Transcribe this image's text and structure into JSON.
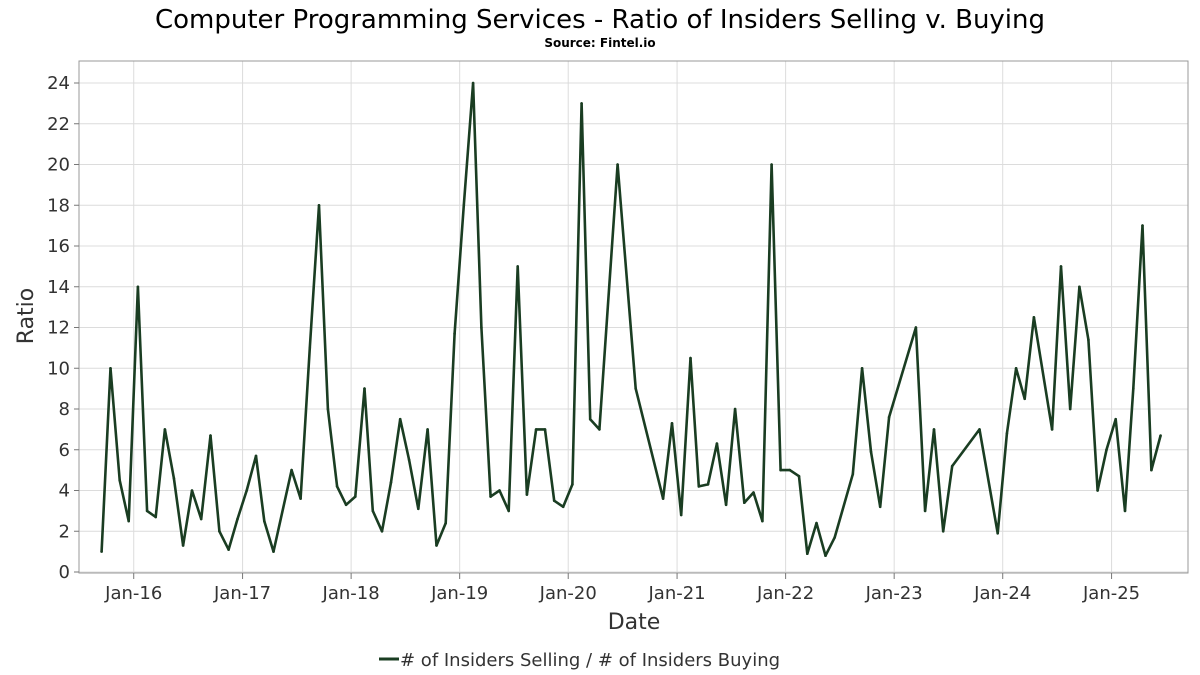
{
  "chart_data": {
    "type": "line",
    "title": "Computer Programming Services - Ratio of Insiders Selling v. Buying",
    "subtitle": "Source: Fintel.io",
    "xlabel": "Date",
    "ylabel": "Ratio",
    "xlim": [
      "2015-07-01",
      "2025-09-15"
    ],
    "ylim": [
      0,
      25
    ],
    "x_ticks": [
      "2016-01-01",
      "2017-01-01",
      "2018-01-01",
      "2019-01-01",
      "2020-01-01",
      "2021-01-01",
      "2022-01-01",
      "2023-01-01",
      "2024-01-01",
      "2025-01-01"
    ],
    "x_tick_labels": [
      "Jan-16",
      "Jan-17",
      "Jan-18",
      "Jan-19",
      "Jan-20",
      "Jan-21",
      "Jan-22",
      "Jan-23",
      "Jan-24",
      "Jan-25"
    ],
    "y_ticks": [
      0,
      2,
      4,
      6,
      8,
      10,
      12,
      14,
      16,
      18,
      20,
      22,
      24
    ],
    "grid": true,
    "legend_position": "bottom",
    "series": [
      {
        "name": "# of Insiders Selling / # of Insiders Buying",
        "color": "#1a3d22",
        "points": [
          [
            "2015-09-15",
            1.0
          ],
          [
            "2015-10-15",
            10.0
          ],
          [
            "2015-11-15",
            4.5
          ],
          [
            "2015-12-15",
            2.5
          ],
          [
            "2016-01-15",
            14.0
          ],
          [
            "2016-02-15",
            3.0
          ],
          [
            "2016-03-15",
            2.7
          ],
          [
            "2016-04-15",
            7.0
          ],
          [
            "2016-05-15",
            4.6
          ],
          [
            "2016-06-15",
            1.3
          ],
          [
            "2016-07-15",
            4.0
          ],
          [
            "2016-08-15",
            2.6
          ],
          [
            "2016-09-15",
            6.7
          ],
          [
            "2016-10-15",
            2.0
          ],
          [
            "2016-11-15",
            1.1
          ],
          [
            "2016-12-15",
            2.6
          ],
          [
            "2017-01-15",
            4.0
          ],
          [
            "2017-02-15",
            5.7
          ],
          [
            "2017-03-15",
            2.5
          ],
          [
            "2017-04-15",
            1.0
          ],
          [
            "2017-06-15",
            5.0
          ],
          [
            "2017-07-15",
            3.6
          ],
          [
            "2017-08-15",
            11.0
          ],
          [
            "2017-09-15",
            18.0
          ],
          [
            "2017-10-15",
            8.0
          ],
          [
            "2017-11-15",
            4.2
          ],
          [
            "2017-12-15",
            3.3
          ],
          [
            "2018-01-15",
            3.7
          ],
          [
            "2018-02-15",
            9.0
          ],
          [
            "2018-03-15",
            3.0
          ],
          [
            "2018-04-15",
            2.0
          ],
          [
            "2018-05-15",
            4.4
          ],
          [
            "2018-06-15",
            7.5
          ],
          [
            "2018-07-15",
            5.5
          ],
          [
            "2018-08-15",
            3.1
          ],
          [
            "2018-09-15",
            7.0
          ],
          [
            "2018-10-15",
            1.3
          ],
          [
            "2018-11-15",
            2.4
          ],
          [
            "2018-12-15",
            11.7
          ],
          [
            "2019-01-15",
            18.0
          ],
          [
            "2019-02-15",
            24.0
          ],
          [
            "2019-03-15",
            12.0
          ],
          [
            "2019-04-15",
            3.7
          ],
          [
            "2019-05-15",
            4.0
          ],
          [
            "2019-06-15",
            3.0
          ],
          [
            "2019-07-15",
            15.0
          ],
          [
            "2019-08-15",
            3.8
          ],
          [
            "2019-09-15",
            7.0
          ],
          [
            "2019-10-15",
            7.0
          ],
          [
            "2019-11-15",
            3.5
          ],
          [
            "2019-12-15",
            3.2
          ],
          [
            "2020-01-15",
            4.3
          ],
          [
            "2020-02-15",
            23.0
          ],
          [
            "2020-03-15",
            7.5
          ],
          [
            "2020-04-15",
            7.0
          ],
          [
            "2020-06-15",
            20.0
          ],
          [
            "2020-08-15",
            9.0
          ],
          [
            "2020-11-15",
            3.6
          ],
          [
            "2020-12-15",
            7.3
          ],
          [
            "2021-01-15",
            2.8
          ],
          [
            "2021-02-15",
            10.5
          ],
          [
            "2021-03-15",
            4.2
          ],
          [
            "2021-04-15",
            4.3
          ],
          [
            "2021-05-15",
            6.3
          ],
          [
            "2021-06-15",
            3.3
          ],
          [
            "2021-07-15",
            8.0
          ],
          [
            "2021-08-15",
            3.4
          ],
          [
            "2021-09-15",
            3.9
          ],
          [
            "2021-10-15",
            2.5
          ],
          [
            "2021-11-15",
            20.0
          ],
          [
            "2021-12-15",
            5.0
          ],
          [
            "2022-01-15",
            5.0
          ],
          [
            "2022-02-15",
            4.7
          ],
          [
            "2022-03-15",
            0.9
          ],
          [
            "2022-04-15",
            2.4
          ],
          [
            "2022-05-15",
            0.8
          ],
          [
            "2022-06-15",
            1.7
          ],
          [
            "2022-08-15",
            4.8
          ],
          [
            "2022-09-15",
            10.0
          ],
          [
            "2022-10-15",
            5.9
          ],
          [
            "2022-11-15",
            3.2
          ],
          [
            "2022-12-15",
            7.6
          ],
          [
            "2023-03-15",
            12.0
          ],
          [
            "2023-04-15",
            3.0
          ],
          [
            "2023-05-15",
            7.0
          ],
          [
            "2023-06-15",
            2.0
          ],
          [
            "2023-07-15",
            5.2
          ],
          [
            "2023-10-15",
            7.0
          ],
          [
            "2023-12-15",
            1.9
          ],
          [
            "2024-01-15",
            6.8
          ],
          [
            "2024-02-15",
            10.0
          ],
          [
            "2024-03-15",
            8.5
          ],
          [
            "2024-04-15",
            12.5
          ],
          [
            "2024-06-15",
            7.0
          ],
          [
            "2024-07-15",
            15.0
          ],
          [
            "2024-08-15",
            8.0
          ],
          [
            "2024-09-15",
            14.0
          ],
          [
            "2024-10-15",
            11.4
          ],
          [
            "2024-11-15",
            4.0
          ],
          [
            "2024-12-15",
            6.0
          ],
          [
            "2025-01-15",
            7.5
          ],
          [
            "2025-02-15",
            3.0
          ],
          [
            "2025-03-15",
            9.0
          ],
          [
            "2025-04-15",
            17.0
          ],
          [
            "2025-05-15",
            5.0
          ],
          [
            "2025-06-15",
            6.7
          ]
        ]
      }
    ]
  }
}
